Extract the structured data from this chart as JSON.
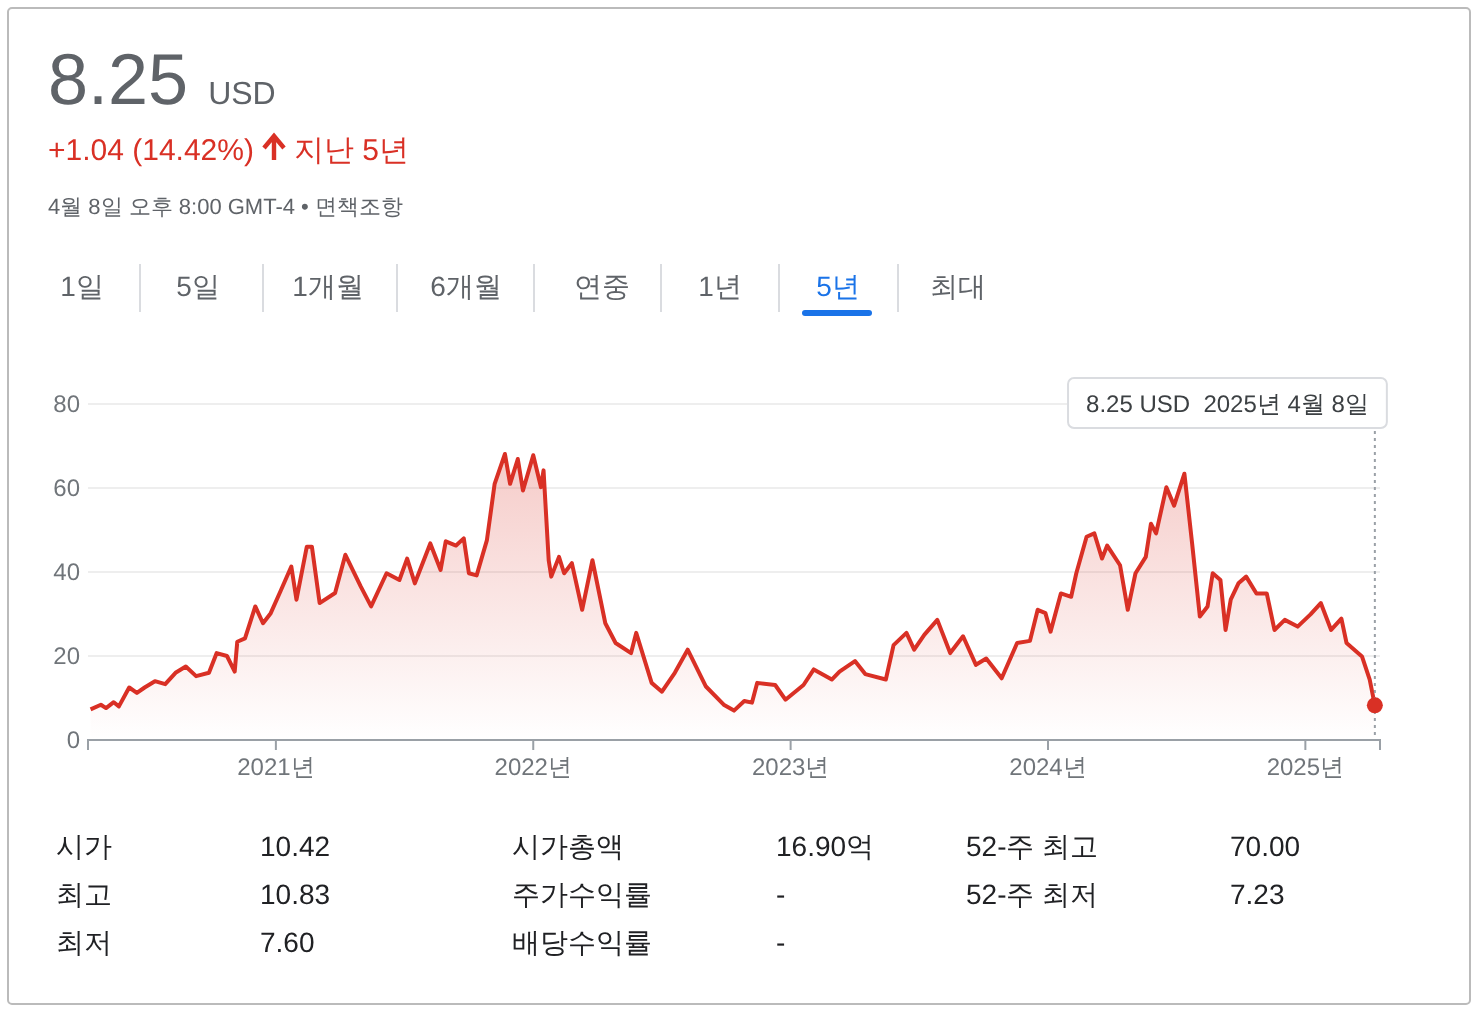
{
  "chart_data": {
    "type": "area",
    "title": "8.25",
    "subtitle": "+1.04 (14.42%)",
    "x": [
      2020.28,
      2020.32,
      2020.34,
      2020.37,
      2020.39,
      2020.43,
      2020.46,
      2020.49,
      2020.53,
      2020.57,
      2020.61,
      2020.65,
      2020.69,
      2020.74,
      2020.77,
      2020.81,
      2020.84,
      2020.85,
      2020.88,
      2020.92,
      2020.95,
      2020.98,
      2021.02,
      2021.06,
      2021.08,
      2021.12,
      2021.14,
      2021.17,
      2021.23,
      2021.27,
      2021.33,
      2021.37,
      2021.43,
      2021.48,
      2021.51,
      2021.54,
      2021.6,
      2021.64,
      2021.66,
      2021.7,
      2021.73,
      2021.75,
      2021.78,
      2021.82,
      2021.85,
      2021.89,
      2021.91,
      2021.94,
      2021.96,
      2022.0,
      2022.03,
      2022.04,
      2022.06,
      2022.07,
      2022.1,
      2022.12,
      2022.15,
      2022.19,
      2022.23,
      2022.28,
      2022.32,
      2022.38,
      2022.4,
      2022.46,
      2022.5,
      2022.55,
      2022.6,
      2022.67,
      2022.74,
      2022.78,
      2022.82,
      2022.85,
      2022.87,
      2022.94,
      2022.98,
      2023.05,
      2023.09,
      2023.16,
      2023.19,
      2023.25,
      2023.29,
      2023.37,
      2023.4,
      2023.45,
      2023.48,
      2023.52,
      2023.57,
      2023.62,
      2023.67,
      2023.72,
      2023.76,
      2023.82,
      2023.88,
      2023.93,
      2023.96,
      2023.99,
      2024.01,
      2024.05,
      2024.09,
      2024.11,
      2024.15,
      2024.18,
      2024.21,
      2024.23,
      2024.28,
      2024.31,
      2024.34,
      2024.38,
      2024.4,
      2024.42,
      2024.46,
      2024.49,
      2024.53,
      2024.56,
      2024.59,
      2024.62,
      2024.64,
      2024.67,
      2024.69,
      2024.71,
      2024.74,
      2024.77,
      2024.81,
      2024.85,
      2024.88,
      2024.92,
      2024.97,
      2025.02,
      2025.06,
      2025.1,
      2025.14,
      2025.16,
      2025.22,
      2025.25,
      2025.27
    ],
    "series": [
      {
        "color": "#d93025",
        "values": [
          7.3,
          8.4,
          7.6,
          9,
          8,
          12.5,
          11.2,
          12.5,
          14,
          13.3,
          16,
          17.5,
          15.2,
          16,
          20.7,
          20,
          16.3,
          23.4,
          24.2,
          31.8,
          27.8,
          30.2,
          35.7,
          41.3,
          33.4,
          46,
          46,
          32.6,
          35,
          44.1,
          36.5,
          31.8,
          39.7,
          38.1,
          43.2,
          37.3,
          46.8,
          40.5,
          47.3,
          46.3,
          48,
          39.7,
          39.2,
          47.6,
          61,
          68.1,
          61,
          66.9,
          59.4,
          67.8,
          60.2,
          64.2,
          42.8,
          38.9,
          43.6,
          39.7,
          42.1,
          31,
          42.8,
          27.8,
          23.1,
          20.7,
          25.5,
          13.6,
          11.5,
          16,
          21.5,
          12.8,
          8.4,
          7,
          9.3,
          8.9,
          13.6,
          13.1,
          9.6,
          13.1,
          16.8,
          14.4,
          16.3,
          18.8,
          15.7,
          14.4,
          22.6,
          25.5,
          21.5,
          25.1,
          28.6,
          20.7,
          24.7,
          17.9,
          19.4,
          14.7,
          23.1,
          23.6,
          31,
          30.2,
          25.8,
          34.9,
          34.1,
          39.7,
          48.4,
          49.2,
          43.2,
          46.3,
          41.6,
          31,
          39.7,
          43.6,
          51.5,
          49.2,
          60.2,
          55.8,
          63.4,
          46.8,
          29.4,
          31.8,
          39.7,
          38.1,
          26.2,
          33.4,
          37.3,
          38.9,
          34.9,
          34.9,
          26.2,
          28.6,
          27,
          29.9,
          32.6,
          26.2,
          28.9,
          23.1,
          19.9,
          14.4,
          8.25
        ]
      }
    ],
    "xlim": [
      2020.27,
      2025.29
    ],
    "ylim": [
      0,
      80
    ],
    "xticks": [
      {
        "value": 2021,
        "label": "2021년"
      },
      {
        "value": 2022,
        "label": "2022년"
      },
      {
        "value": 2023,
        "label": "2023년"
      },
      {
        "value": 2024,
        "label": "2024년"
      },
      {
        "value": 2025,
        "label": "2025년"
      }
    ],
    "yticks": [
      0,
      20,
      40,
      60,
      80
    ],
    "grid": "y",
    "annotations": [
      "USD",
      "지난 5년",
      "4월 8일 오후 8:00 GMT-4 • 면책조항",
      "1일",
      "5일",
      "1개월",
      "6개월",
      "연중",
      "1년",
      "5년",
      "최대",
      "시가",
      "10.42",
      "최고",
      "10.83",
      "최저",
      "7.60",
      "시가총액",
      "16.90억",
      "주가수익률",
      "-",
      "배당수익률",
      "-",
      "52-주 최고",
      "70.00",
      "52-주 최저",
      "7.23",
      "8.25 USD  2025년 4월 8일"
    ],
    "ref_lines": [
      {
        "axis": "x",
        "value": 2025.27,
        "color": "#9aa0a6",
        "line_style": "dotted"
      }
    ]
  }
}
